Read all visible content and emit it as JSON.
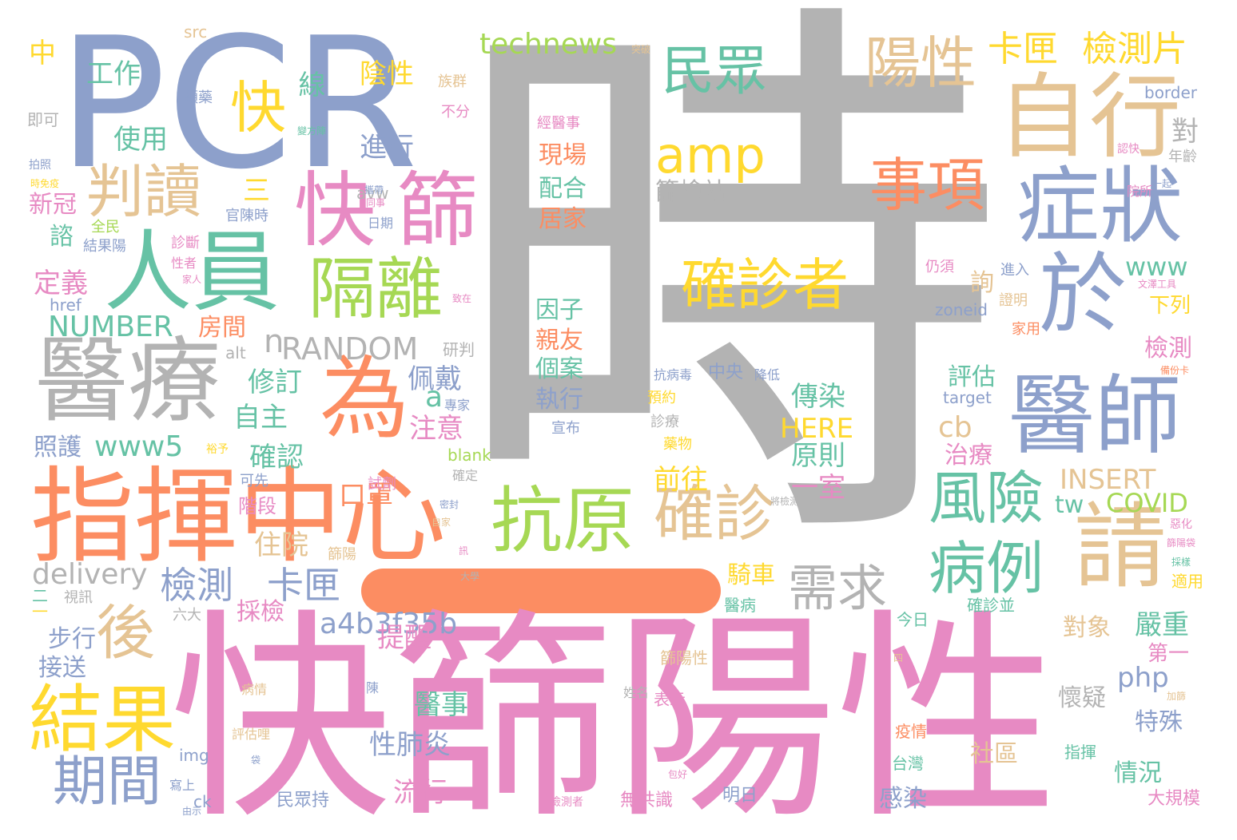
{
  "colors": {
    "gray": "#b3b3b3",
    "pink": "#e78ac3",
    "orange": "#fc8d62",
    "blue": "#8da0cb",
    "green": "#66c2a5",
    "lime": "#a6d854",
    "yellow": "#ffd92f",
    "tan": "#e5c494"
  },
  "words": [
    {
      "t": "時",
      "c": "gray"
    },
    {
      "t": "快篩陽性",
      "c": "pink"
    },
    {
      "t": "PCR",
      "c": "blue"
    },
    {
      "t": "指揮中心",
      "c": "orange"
    },
    {
      "t": "自行",
      "c": "tan"
    },
    {
      "t": "醫療",
      "c": "gray"
    },
    {
      "t": "人員",
      "c": "green"
    },
    {
      "t": "醫師",
      "c": "blue"
    },
    {
      "t": "症狀",
      "c": "blue"
    },
    {
      "t": "抗原",
      "c": "lime"
    },
    {
      "t": "為",
      "c": "orange"
    },
    {
      "t": "快",
      "c": "pink"
    },
    {
      "t": "篩",
      "c": "pink"
    },
    {
      "t": "於",
      "c": "blue"
    },
    {
      "t": "請",
      "c": "tan"
    },
    {
      "t": "結果",
      "c": "yellow"
    },
    {
      "t": "隔離",
      "c": "lime"
    },
    {
      "t": "確診",
      "c": "tan"
    },
    {
      "t": "確診者",
      "c": "yellow"
    },
    {
      "t": "風險",
      "c": "green"
    },
    {
      "t": "病例",
      "c": "green"
    },
    {
      "t": "事項",
      "c": "orange"
    },
    {
      "t": "判讀",
      "c": "tan"
    },
    {
      "t": "期間",
      "c": "blue"
    },
    {
      "t": "後",
      "c": "tan"
    },
    {
      "t": "民眾",
      "c": "green"
    },
    {
      "t": "陽性",
      "c": "tan"
    },
    {
      "t": "amp",
      "c": "yellow"
    },
    {
      "t": "需求",
      "c": "gray"
    },
    {
      "t": "快",
      "c": "yellow"
    },
    {
      "t": "卡匣",
      "c": "yellow"
    },
    {
      "t": "檢測片",
      "c": "yellow"
    },
    {
      "t": "technews",
      "c": "lime"
    },
    {
      "t": "檢測",
      "c": "blue"
    },
    {
      "t": "卡匣",
      "c": "blue"
    },
    {
      "t": "a4b3f35b",
      "c": "blue"
    },
    {
      "t": "RANDOM",
      "c": "gray"
    },
    {
      "t": "NUMBER",
      "c": "green"
    },
    {
      "t": "delivery",
      "c": "gray"
    },
    {
      "t": "www5",
      "c": "green"
    },
    {
      "t": "INSERT",
      "c": "tan"
    },
    {
      "t": "COVID",
      "c": "lime"
    },
    {
      "t": "HERE",
      "c": "yellow"
    },
    {
      "t": "www",
      "c": "green"
    },
    {
      "t": "php",
      "c": "blue"
    },
    {
      "t": "zoneid",
      "c": "blue"
    },
    {
      "t": "border",
      "c": "blue"
    },
    {
      "t": "target",
      "c": "blue"
    },
    {
      "t": "blank",
      "c": "lime"
    },
    {
      "t": "href",
      "c": "blue"
    },
    {
      "t": "avw",
      "c": "gray"
    },
    {
      "t": "img",
      "c": "blue"
    },
    {
      "t": "ck",
      "c": "blue"
    },
    {
      "t": "alt",
      "c": "gray"
    },
    {
      "t": "src",
      "c": "tan"
    },
    {
      "t": "tw",
      "c": "green"
    },
    {
      "t": "cb",
      "c": "tan"
    },
    {
      "t": "a",
      "c": "green"
    },
    {
      "t": "n",
      "c": "gray"
    },
    {
      "t": "工作",
      "c": "green"
    },
    {
      "t": "中",
      "c": "yellow"
    },
    {
      "t": "線",
      "c": "green"
    },
    {
      "t": "陰性",
      "c": "yellow"
    },
    {
      "t": "使用",
      "c": "green"
    },
    {
      "t": "進行",
      "c": "blue"
    },
    {
      "t": "三",
      "c": "yellow"
    },
    {
      "t": "修訂",
      "c": "green"
    },
    {
      "t": "自主",
      "c": "green"
    },
    {
      "t": "房間",
      "c": "orange"
    },
    {
      "t": "照護",
      "c": "blue"
    },
    {
      "t": "確認",
      "c": "green"
    },
    {
      "t": "口罩",
      "c": "orange"
    },
    {
      "t": "佩戴",
      "c": "blue"
    },
    {
      "t": "注意",
      "c": "pink"
    },
    {
      "t": "定義",
      "c": "pink"
    },
    {
      "t": "諮",
      "c": "green"
    },
    {
      "t": "新冠",
      "c": "pink"
    },
    {
      "t": "即可",
      "c": "gray"
    },
    {
      "t": "傳染",
      "c": "green"
    },
    {
      "t": "原則",
      "c": "green"
    },
    {
      "t": "一室",
      "c": "pink"
    },
    {
      "t": "前往",
      "c": "yellow"
    },
    {
      "t": "評估",
      "c": "green"
    },
    {
      "t": "治療",
      "c": "pink"
    },
    {
      "t": "檢測",
      "c": "pink"
    },
    {
      "t": "下列",
      "c": "yellow"
    },
    {
      "t": "詢",
      "c": "tan"
    },
    {
      "t": "對",
      "c": "gray"
    },
    {
      "t": "騎車",
      "c": "yellow"
    },
    {
      "t": "採檢",
      "c": "pink"
    },
    {
      "t": "住院",
      "c": "tan"
    },
    {
      "t": "階段",
      "c": "pink"
    },
    {
      "t": "步行",
      "c": "blue"
    },
    {
      "t": "接送",
      "c": "blue"
    },
    {
      "t": "提醒",
      "c": "pink"
    },
    {
      "t": "醫事",
      "c": "green"
    },
    {
      "t": "性肺炎",
      "c": "blue"
    },
    {
      "t": "流行",
      "c": "pink"
    },
    {
      "t": "嚴重",
      "c": "green"
    },
    {
      "t": "對象",
      "c": "tan"
    },
    {
      "t": "第一",
      "c": "pink"
    },
    {
      "t": "懷疑",
      "c": "gray"
    },
    {
      "t": "特殊",
      "c": "blue"
    },
    {
      "t": "社區",
      "c": "tan"
    },
    {
      "t": "情況",
      "c": "green"
    },
    {
      "t": "感染",
      "c": "blue"
    },
    {
      "t": "大規模",
      "c": "pink"
    },
    {
      "t": "疫情",
      "c": "orange"
    },
    {
      "t": "台灣",
      "c": "green"
    },
    {
      "t": "指揮",
      "c": "green"
    },
    {
      "t": "篩檢站",
      "c": "gray"
    },
    {
      "t": "研判",
      "c": "gray"
    },
    {
      "t": "中央",
      "c": "blue"
    },
    {
      "t": "降低",
      "c": "blue"
    },
    {
      "t": "抗病毒",
      "c": "blue"
    },
    {
      "t": "篩陽性",
      "c": "tan"
    },
    {
      "t": "表示",
      "c": "pink"
    },
    {
      "t": "無共識",
      "c": "pink"
    },
    {
      "t": "明日",
      "c": "blue"
    },
    {
      "t": "民眾持",
      "c": "blue"
    },
    {
      "t": "今日",
      "c": "green"
    },
    {
      "t": "確診並",
      "c": "green"
    },
    {
      "t": "醫病",
      "c": "green"
    },
    {
      "t": "適用",
      "c": "yellow"
    },
    {
      "t": "證明",
      "c": "tan"
    },
    {
      "t": "進入",
      "c": "blue"
    },
    {
      "t": "家用",
      "c": "orange"
    },
    {
      "t": "仍須",
      "c": "pink"
    },
    {
      "t": "年齡",
      "c": "gray"
    },
    {
      "t": "視訊",
      "c": "gray"
    },
    {
      "t": "六大",
      "c": "gray"
    },
    {
      "t": "二",
      "c": "green"
    },
    {
      "t": "一",
      "c": "yellow"
    },
    {
      "t": "官陳時",
      "c": "blue"
    },
    {
      "t": "全民",
      "c": "lime"
    },
    {
      "t": "可先",
      "c": "blue"
    },
    {
      "t": "不分",
      "c": "pink"
    },
    {
      "t": "族群",
      "c": "tan"
    },
    {
      "t": "院所",
      "c": "pink"
    },
    {
      "t": "一起",
      "c": "blue"
    },
    {
      "t": "領藥",
      "c": "blue"
    },
    {
      "t": "確定",
      "c": "gray"
    },
    {
      "t": "試劑",
      "c": "pink"
    },
    {
      "t": "藥物",
      "c": "yellow"
    },
    {
      "t": "預約",
      "c": "yellow"
    },
    {
      "t": "診療",
      "c": "gray"
    },
    {
      "t": "專家",
      "c": "blue"
    },
    {
      "t": "評估哩",
      "c": "tan"
    },
    {
      "t": "寫上",
      "c": "blue"
    },
    {
      "t": "拍照",
      "c": "blue"
    },
    {
      "t": "診斷",
      "c": "pink"
    },
    {
      "t": "結果陽",
      "c": "blue"
    },
    {
      "t": "日期",
      "c": "blue"
    },
    {
      "t": "陳",
      "c": "blue"
    },
    {
      "t": "姓名",
      "c": "gray"
    },
    {
      "t": "病情",
      "c": "tan"
    },
    {
      "t": "因子",
      "c": "green"
    },
    {
      "t": "親友",
      "c": "orange"
    },
    {
      "t": "個案",
      "c": "green"
    },
    {
      "t": "執行",
      "c": "blue"
    },
    {
      "t": "宣布",
      "c": "blue"
    },
    {
      "t": "經醫事",
      "c": "pink"
    },
    {
      "t": "現場",
      "c": "orange"
    },
    {
      "t": "配合",
      "c": "green"
    },
    {
      "t": "居家",
      "c": "orange"
    },
    {
      "t": "篩陽",
      "c": "tan"
    },
    {
      "t": "性者",
      "c": "pink"
    },
    {
      "t": "家人",
      "c": "pink"
    },
    {
      "t": "裕予",
      "c": "yellow"
    },
    {
      "t": "攜帶",
      "c": "blue"
    },
    {
      "t": "同事",
      "c": "pink"
    },
    {
      "t": "時免疫",
      "c": "yellow"
    },
    {
      "t": "變方陣",
      "c": "green"
    },
    {
      "t": "認快",
      "c": "pink"
    },
    {
      "t": "惡化",
      "c": "pink"
    },
    {
      "t": "檢測者",
      "c": "pink"
    },
    {
      "t": "將檢測",
      "c": "gray"
    },
    {
      "t": "致在",
      "c": "pink"
    },
    {
      "t": "四",
      "c": "tan"
    },
    {
      "t": "周",
      "c": "pink"
    },
    {
      "t": "包好",
      "c": "pink"
    },
    {
      "t": "袋",
      "c": "blue"
    },
    {
      "t": "訊",
      "c": "pink"
    },
    {
      "t": "大學",
      "c": "gray"
    },
    {
      "t": "由示",
      "c": "blue"
    },
    {
      "t": "採樣",
      "c": "green"
    },
    {
      "t": "備份卡",
      "c": "orange"
    },
    {
      "t": "文澤工具",
      "c": "pink"
    },
    {
      "t": "篩陽袋",
      "c": "pink"
    },
    {
      "t": "密封",
      "c": "blue"
    },
    {
      "t": "自家",
      "c": "tan"
    },
    {
      "t": "加篩",
      "c": "tan"
    },
    {
      "t": "突破",
      "c": "tan"
    }
  ]
}
